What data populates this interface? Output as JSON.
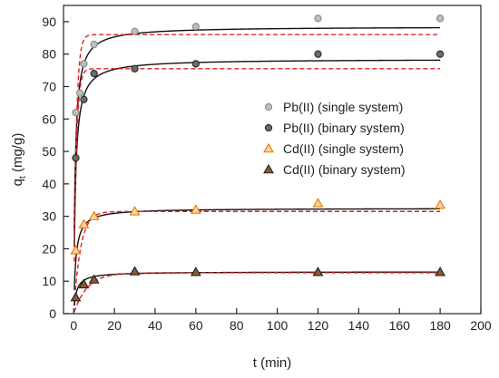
{
  "chart_data": {
    "type": "scatter",
    "xlabel": "t (min)",
    "ylabel_main": "q",
    "ylabel_sub": "t",
    "ylabel_unit": " (mg/g)",
    "xlim": [
      -5,
      200
    ],
    "ylim": [
      0,
      95
    ],
    "xticks": [
      0,
      20,
      40,
      60,
      80,
      100,
      120,
      140,
      160,
      180,
      200
    ],
    "yticks": [
      0,
      10,
      20,
      30,
      40,
      50,
      60,
      70,
      80,
      90
    ],
    "legend_position": "center-right",
    "series": [
      {
        "name": "Pb(II) (single system)",
        "marker": "circle",
        "fill": "#bdbdbd",
        "stroke": "#8a8a8a",
        "x": [
          1,
          3,
          5,
          10,
          30,
          60,
          120,
          180
        ],
        "y": [
          62,
          68,
          77,
          83,
          87,
          88.5,
          91,
          91
        ],
        "fit_solid": {
          "qe": 88.5,
          "k2": 0.015
        },
        "fit_dashed": {
          "qe": 86,
          "k1": 0.8
        }
      },
      {
        "name": "Pb(II) (binary system)",
        "marker": "circle",
        "fill": "#6b6b6b",
        "stroke": "#2a2a2a",
        "x": [
          1,
          5,
          10,
          30,
          60,
          120,
          180
        ],
        "y": [
          48,
          66,
          74,
          75.5,
          77,
          80,
          80
        ],
        "fit_solid": {
          "qe": 78.5,
          "k2": 0.015
        },
        "fit_dashed": {
          "qe": 75.5,
          "k1": 0.8
        }
      },
      {
        "name": "Cd(II) (single system)",
        "marker": "triangle",
        "fill": "#ffd59e",
        "stroke": "#e07b00",
        "x": [
          1,
          5,
          10,
          30,
          60,
          120,
          180
        ],
        "y": [
          19.5,
          27.5,
          30,
          31.5,
          32,
          34,
          33.5
        ],
        "fit_solid": {
          "qe": 32.5,
          "k2": 0.03
        },
        "fit_dashed": {
          "qe": 31.5,
          "k1": 0.3
        }
      },
      {
        "name": "Cd(II) (binary system)",
        "marker": "triangle",
        "fill": "#8a5a2b",
        "stroke": "#222222",
        "x": [
          1,
          5,
          10,
          30,
          60,
          120,
          180
        ],
        "y": [
          5,
          9,
          10.5,
          13,
          12.8,
          12.8,
          12.8
        ],
        "fit_solid": {
          "qe": 12.9,
          "k2": 0.06
        },
        "fit_dashed": {
          "qe": 12.6,
          "k1": 0.15
        }
      }
    ],
    "fit_colors": {
      "solid": "#111111",
      "dashed": "#e02020"
    }
  }
}
